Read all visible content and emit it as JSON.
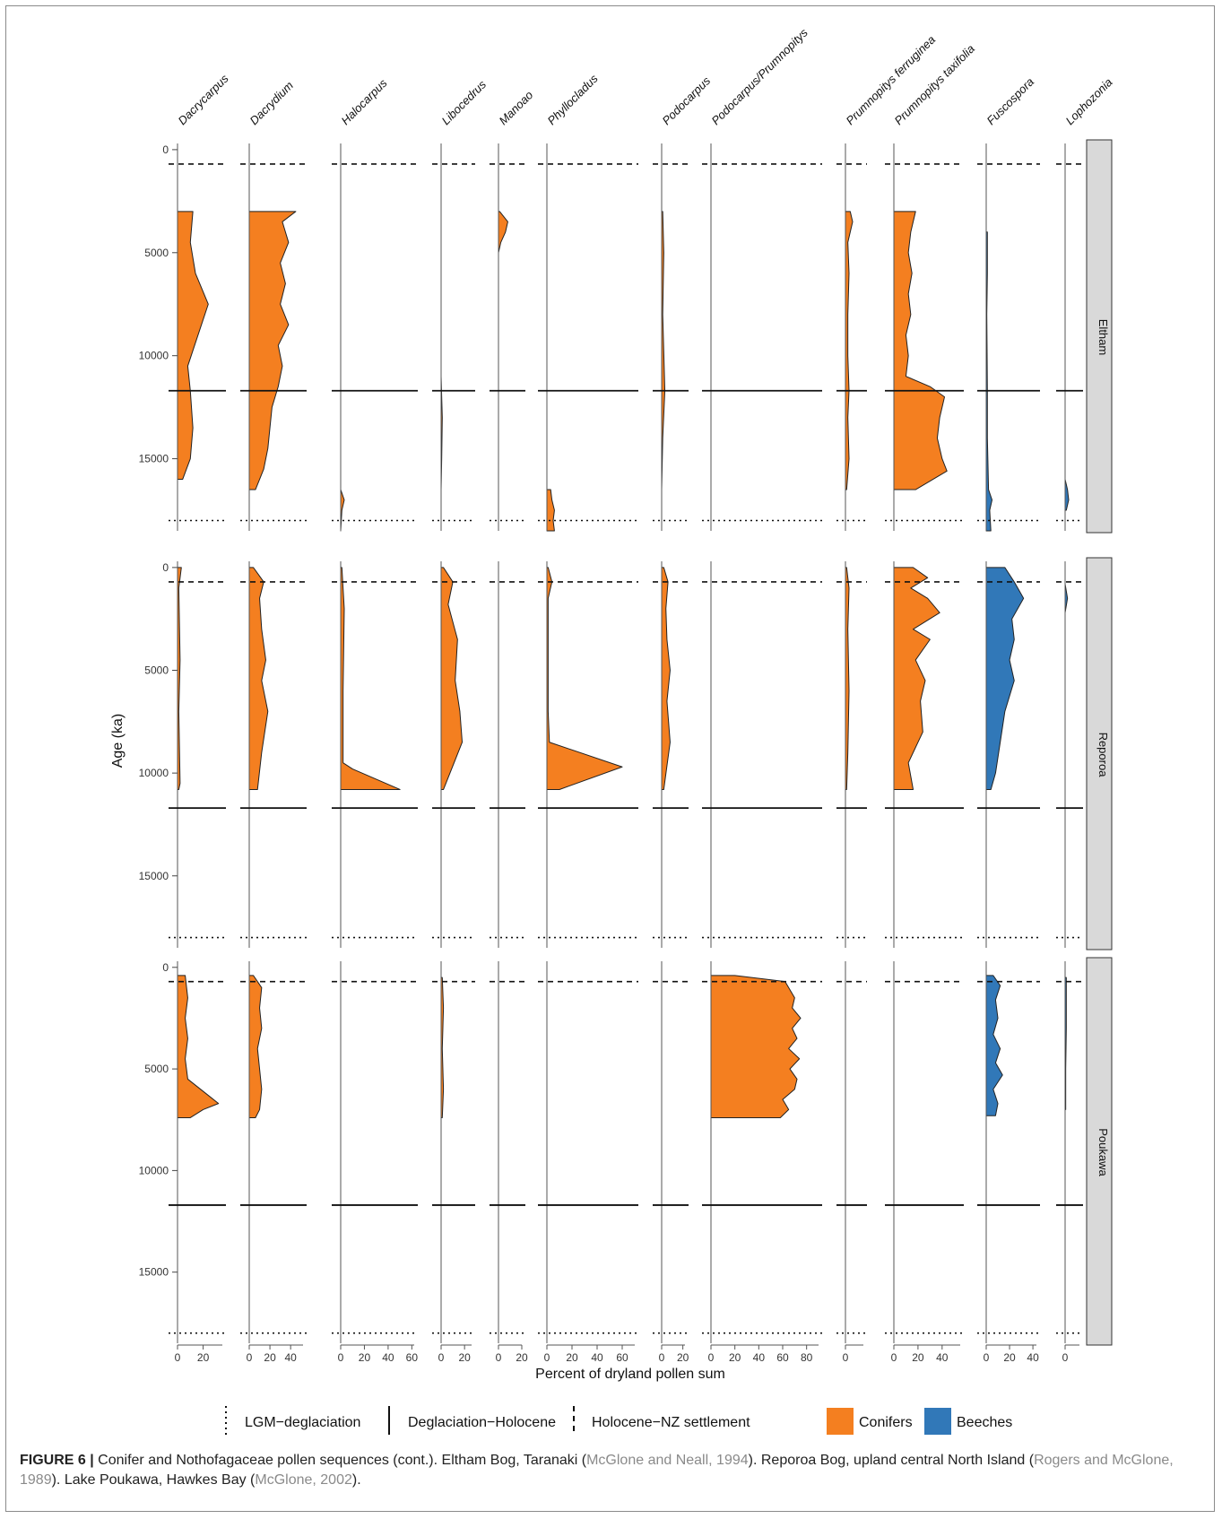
{
  "chart_data": {
    "type": "area",
    "ylabel": "Age (ka)",
    "xlabel": "Percent of dryland pollen sum",
    "y_ticks": [
      0,
      5000,
      10000,
      15000
    ],
    "ylim": [
      0,
      18500
    ],
    "reference_lines": [
      {
        "age": 700,
        "style": "dashed",
        "label": "Holocene−NZ settlement"
      },
      {
        "age": 11700,
        "style": "solid",
        "label": "Deglaciation−Holocene"
      },
      {
        "age": 18000,
        "style": "dotted",
        "label": "LGM−deglaciation"
      }
    ],
    "legend": {
      "lines": [
        {
          "style": "dotted",
          "label": "LGM−deglaciation"
        },
        {
          "style": "solid",
          "label": "Deglaciation−Holocene"
        },
        {
          "style": "dashed",
          "label": "Holocene−NZ settlement"
        }
      ],
      "fills": [
        {
          "label": "Conifers",
          "color": "#f47f20"
        },
        {
          "label": "Beeches",
          "color": "#3178b8"
        }
      ]
    },
    "taxa": [
      {
        "name": "Dacrycarpus",
        "group": "Conifers",
        "xmax": 35,
        "ticks": [
          0,
          20
        ]
      },
      {
        "name": "Dacrydium",
        "group": "Conifers",
        "xmax": 52,
        "ticks": [
          0,
          20,
          40
        ]
      },
      {
        "name": "Halocarpus",
        "group": "Conifers",
        "xmax": 62,
        "ticks": [
          0,
          20,
          40,
          60
        ]
      },
      {
        "name": "Libocedrus",
        "group": "Conifers",
        "xmax": 26,
        "ticks": [
          0,
          20
        ]
      },
      {
        "name": "Manoao",
        "group": "Conifers",
        "xmax": 20,
        "ticks": [
          0,
          20
        ]
      },
      {
        "name": "Phyllocladus",
        "group": "Conifers",
        "xmax": 70,
        "ticks": [
          0,
          20,
          40,
          60
        ]
      },
      {
        "name": "Podocarpus",
        "group": "Conifers",
        "xmax": 22,
        "ticks": [
          0,
          20
        ]
      },
      {
        "name": "Podocarpus/Prumnopitys",
        "group": "Conifers",
        "xmax": 90,
        "ticks": [
          0,
          20,
          40,
          60,
          80
        ]
      },
      {
        "name": "Prumnopitys ferruginea",
        "group": "Conifers",
        "xmax": 15,
        "ticks": [
          0
        ]
      },
      {
        "name": "Prumnopitys taxifolia",
        "group": "Conifers",
        "xmax": 55,
        "ticks": [
          0,
          20,
          40
        ]
      },
      {
        "name": "Fuscospora",
        "group": "Beeches",
        "xmax": 43,
        "ticks": [
          0,
          20,
          40
        ]
      },
      {
        "name": "Lophozonia",
        "group": "Beeches",
        "xmax": 12,
        "ticks": [
          0
        ]
      }
    ],
    "sites": [
      {
        "name": "Eltham",
        "series": [
          {
            "taxon": "Dacrycarpus",
            "age": [
              3000,
              4500,
              6000,
              7500,
              9000,
              10500,
              11700,
              13500,
              15000,
              16000
            ],
            "value": [
              12,
              10,
              14,
              24,
              16,
              8,
              10,
              12,
              10,
              4
            ]
          },
          {
            "taxon": "Dacrydium",
            "age": [
              3000,
              3500,
              4500,
              5500,
              6500,
              7500,
              8500,
              9500,
              10500,
              11500,
              12500,
              13500,
              14500,
              15500,
              16500
            ],
            "value": [
              45,
              32,
              38,
              30,
              35,
              30,
              38,
              28,
              32,
              28,
              22,
              20,
              18,
              14,
              6
            ]
          },
          {
            "taxon": "Halocarpus",
            "age": [
              16500,
              17000,
              17500,
              18500
            ],
            "value": [
              0,
              3,
              1,
              0
            ]
          },
          {
            "taxon": "Libocedrus",
            "age": [
              11000,
              13000,
              15000,
              16500
            ],
            "value": [
              0,
              1,
              0.5,
              0
            ]
          },
          {
            "taxon": "Manoao",
            "age": [
              3000,
              3500,
              4000,
              4500,
              5000
            ],
            "value": [
              1,
              8,
              6,
              2,
              0
            ]
          },
          {
            "taxon": "Phyllocladus",
            "age": [
              16500,
              17000,
              17500,
              18000,
              18500
            ],
            "value": [
              3,
              4,
              6,
              5,
              6
            ]
          },
          {
            "taxon": "Podocarpus",
            "age": [
              3000,
              5000,
              8000,
              11700,
              14000,
              16500
            ],
            "value": [
              1,
              2,
              1,
              3,
              1,
              0
            ]
          },
          {
            "taxon": "Prumnopitys ferruginea",
            "age": [
              3000,
              3500,
              4500,
              6000,
              8000,
              10000,
              11700,
              13000,
              15000,
              16500
            ],
            "value": [
              4,
              6,
              2,
              3,
              2,
              2,
              3,
              2,
              3,
              1
            ]
          },
          {
            "taxon": "Prumnopitys taxifolia",
            "age": [
              3000,
              4000,
              5000,
              6000,
              7000,
              8000,
              9000,
              10000,
              11000,
              11500,
              12000,
              13000,
              14000,
              15000,
              15600,
              16500
            ],
            "value": [
              18,
              14,
              12,
              15,
              12,
              14,
              10,
              12,
              10,
              30,
              42,
              38,
              36,
              40,
              44,
              18
            ]
          },
          {
            "taxon": "Fuscospora",
            "age": [
              4000,
              6000,
              8000,
              11700,
              14000,
              16500,
              17000,
              17500,
              18500
            ],
            "value": [
              1,
              1,
              0.5,
              1,
              1,
              2,
              5,
              3,
              4
            ]
          },
          {
            "taxon": "Lophozonia",
            "age": [
              16000,
              16500,
              17000,
              17500
            ],
            "value": [
              0,
              2,
              3,
              1
            ]
          }
        ]
      },
      {
        "name": "Reporoa",
        "series": [
          {
            "taxon": "Dacrycarpus",
            "age": [
              0,
              1000,
              4500,
              7000,
              10500,
              10800
            ],
            "value": [
              3,
              1,
              2,
              1,
              2,
              1
            ]
          },
          {
            "taxon": "Dacrydium",
            "age": [
              0,
              700,
              1500,
              3000,
              4500,
              5500,
              7000,
              9000,
              10800
            ],
            "value": [
              4,
              14,
              10,
              12,
              16,
              12,
              18,
              12,
              8
            ]
          },
          {
            "taxon": "Halocarpus",
            "age": [
              0,
              2000,
              6000,
              9500,
              9800,
              10800
            ],
            "value": [
              1,
              3,
              2,
              2,
              10,
              50
            ]
          },
          {
            "taxon": "Libocedrus",
            "age": [
              0,
              700,
              1800,
              3500,
              5500,
              7000,
              8500,
              10800
            ],
            "value": [
              2,
              10,
              6,
              14,
              12,
              16,
              18,
              2
            ]
          },
          {
            "taxon": "Phyllocladus",
            "age": [
              0,
              700,
              1500,
              3000,
              5000,
              7000,
              8500,
              9700,
              10800
            ],
            "value": [
              1,
              4,
              1,
              1,
              1,
              1,
              2,
              60,
              10
            ]
          },
          {
            "taxon": "Podocarpus",
            "age": [
              0,
              700,
              2000,
              3500,
              5000,
              6500,
              8500,
              10800
            ],
            "value": [
              2,
              6,
              4,
              5,
              8,
              5,
              8,
              2
            ]
          },
          {
            "taxon": "Prumnopitys ferruginea",
            "age": [
              0,
              1000,
              3000,
              6000,
              9000,
              10800
            ],
            "value": [
              1,
              3,
              2,
              3,
              2,
              1
            ]
          },
          {
            "taxon": "Prumnopitys taxifolia",
            "age": [
              0,
              500,
              1000,
              1500,
              2200,
              3000,
              3500,
              4500,
              5500,
              6500,
              8000,
              9500,
              10800
            ],
            "value": [
              16,
              28,
              14,
              28,
              38,
              16,
              30,
              18,
              26,
              22,
              24,
              12,
              16
            ]
          },
          {
            "taxon": "Fuscospora",
            "age": [
              0,
              700,
              1500,
              2500,
              3500,
              4500,
              5500,
              7000,
              8500,
              10000,
              10800
            ],
            "value": [
              16,
              24,
              32,
              22,
              24,
              20,
              24,
              16,
              12,
              8,
              4
            ]
          },
          {
            "taxon": "Lophozonia",
            "age": [
              800,
              1500,
              2200
            ],
            "value": [
              0,
              2,
              0
            ]
          }
        ]
      },
      {
        "name": "Poukawa",
        "series": [
          {
            "taxon": "Dacrycarpus",
            "age": [
              400,
              1500,
              2500,
              3500,
              4500,
              5500,
              6300,
              6700,
              7000,
              7400
            ],
            "value": [
              6,
              8,
              6,
              8,
              6,
              8,
              24,
              32,
              20,
              10
            ]
          },
          {
            "taxon": "Dacrydium",
            "age": [
              400,
              1000,
              2000,
              3000,
              4000,
              5000,
              6000,
              7000,
              7400
            ],
            "value": [
              4,
              12,
              10,
              12,
              8,
              10,
              12,
              10,
              6
            ]
          },
          {
            "taxon": "Libocedrus",
            "age": [
              500,
              2000,
              4000,
              6000,
              7400
            ],
            "value": [
              1,
              2,
              1,
              2,
              1
            ]
          },
          {
            "taxon": "Podocarpus/Prumnopitys",
            "age": [
              400,
              700,
              1500,
              2000,
              2500,
              3000,
              3500,
              4000,
              4500,
              5000,
              5500,
              6000,
              6500,
              7000,
              7400
            ],
            "value": [
              20,
              62,
              70,
              68,
              75,
              68,
              72,
              65,
              74,
              66,
              72,
              70,
              60,
              65,
              58
            ]
          },
          {
            "taxon": "Fuscospora",
            "age": [
              400,
              900,
              1600,
              2500,
              3300,
              4000,
              4700,
              5300,
              6000,
              6700,
              7300
            ],
            "value": [
              6,
              12,
              8,
              10,
              6,
              12,
              8,
              14,
              6,
              10,
              8
            ]
          },
          {
            "taxon": "Lophozonia",
            "age": [
              500,
              3000,
              5000,
              7000
            ],
            "value": [
              1,
              1,
              0.5,
              0.5
            ]
          }
        ]
      }
    ]
  },
  "caption": {
    "label": "FIGURE 6 |",
    "text_1": " Conifer and Nothofagaceae pollen sequences (cont.). Eltham Bog, Taranaki (",
    "cite_1": "McGlone and Neall, 1994",
    "text_2": "). Reporoa Bog, upland central North Island (",
    "cite_2": "Rogers and McGlone, 1989",
    "text_3": "). Lake Poukawa, Hawkes Bay (",
    "cite_3": "McGlone, 2002",
    "text_4": ")."
  }
}
